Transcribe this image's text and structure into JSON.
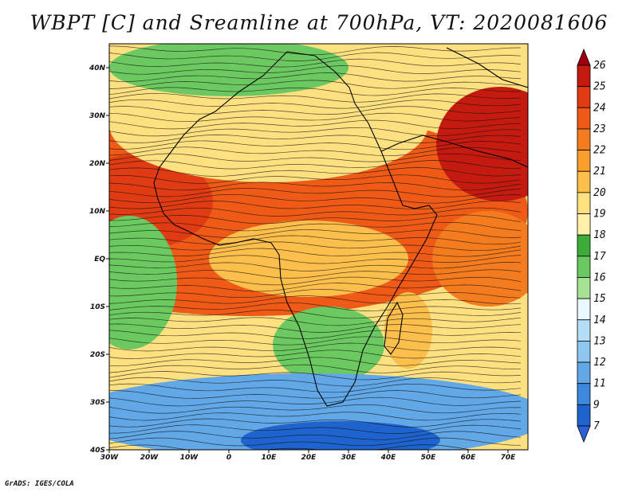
{
  "title": "WBPT [C] and Sreamline at 700hPa, VT: 2020081606",
  "credit": "GrADS: IGES/COLA",
  "map": {
    "lon_range": [
      -30,
      75
    ],
    "lat_range": [
      -40,
      45
    ],
    "lon_ticks": [
      {
        "value": -30,
        "label": "30W"
      },
      {
        "value": -20,
        "label": "20W"
      },
      {
        "value": -10,
        "label": "10W"
      },
      {
        "value": 0,
        "label": "0"
      },
      {
        "value": 10,
        "label": "10E"
      },
      {
        "value": 20,
        "label": "20E"
      },
      {
        "value": 30,
        "label": "30E"
      },
      {
        "value": 40,
        "label": "40E"
      },
      {
        "value": 50,
        "label": "50E"
      },
      {
        "value": 60,
        "label": "60E"
      },
      {
        "value": 70,
        "label": "70E"
      }
    ],
    "lat_ticks": [
      {
        "value": 40,
        "label": "40N"
      },
      {
        "value": 30,
        "label": "30N"
      },
      {
        "value": 20,
        "label": "20N"
      },
      {
        "value": 10,
        "label": "10N"
      },
      {
        "value": 0,
        "label": "EQ"
      },
      {
        "value": -10,
        "label": "10S"
      },
      {
        "value": -20,
        "label": "20S"
      },
      {
        "value": -30,
        "label": "30S"
      },
      {
        "value": -40,
        "label": "40S"
      }
    ]
  },
  "colorbar": {
    "levels": [
      "26",
      "25",
      "24",
      "23",
      "22",
      "21",
      "20",
      "19",
      "18",
      "17",
      "16",
      "15",
      "14",
      "13",
      "12",
      "11",
      "9",
      "7"
    ],
    "colors": [
      "#a0000f",
      "#c41a0f",
      "#e03b12",
      "#ef5a17",
      "#f57b1f",
      "#fb9e2c",
      "#fcbf4c",
      "#fde080",
      "#fff1aa",
      "#3cab3a",
      "#6cc860",
      "#a6e294",
      "#eaf8ff",
      "#b5ddf5",
      "#8fc6ef",
      "#62a7e6",
      "#3d87dc",
      "#1f63cf",
      "#2b61d8"
    ]
  },
  "fields": [
    {
      "name": "sahel-warm-band",
      "lon": 5,
      "lat": 10,
      "rx": 70,
      "ry": 22,
      "color": "#ef5a17"
    },
    {
      "name": "west-africa-hot",
      "lon": -22,
      "lat": 12,
      "rx": 18,
      "ry": 10,
      "color": "#e03b12"
    },
    {
      "name": "arabia-hot",
      "lon": 68,
      "lat": 24,
      "rx": 16,
      "ry": 12,
      "color": "#c41a0f"
    },
    {
      "name": "sahara-mild",
      "lon": 10,
      "lat": 28,
      "rx": 40,
      "ry": 12,
      "color": "#fde080"
    },
    {
      "name": "mediterranean-green",
      "lon": 0,
      "lat": 40,
      "rx": 30,
      "ry": 6,
      "color": "#6cc860"
    },
    {
      "name": "equatorial-warm",
      "lon": 20,
      "lat": 0,
      "rx": 25,
      "ry": 8,
      "color": "#fcbf4c"
    },
    {
      "name": "indian-ocean-warm",
      "lon": 65,
      "lat": 0,
      "rx": 14,
      "ry": 10,
      "color": "#f57b1f"
    },
    {
      "name": "atlantic-green",
      "lon": -25,
      "lat": -5,
      "rx": 12,
      "ry": 14,
      "color": "#6cc860"
    },
    {
      "name": "south-africa-green",
      "lon": 25,
      "lat": -18,
      "rx": 14,
      "ry": 8,
      "color": "#6cc860"
    },
    {
      "name": "southern-blue",
      "lon": 20,
      "lat": -33,
      "rx": 60,
      "ry": 9,
      "color": "#62a7e6"
    },
    {
      "name": "southern-deep-blue",
      "lon": 28,
      "lat": -38,
      "rx": 25,
      "ry": 4,
      "color": "#1f63cf"
    },
    {
      "name": "madagascar-warm",
      "lon": 45,
      "lat": -15,
      "rx": 6,
      "ry": 8,
      "color": "#fcbf4c"
    }
  ]
}
